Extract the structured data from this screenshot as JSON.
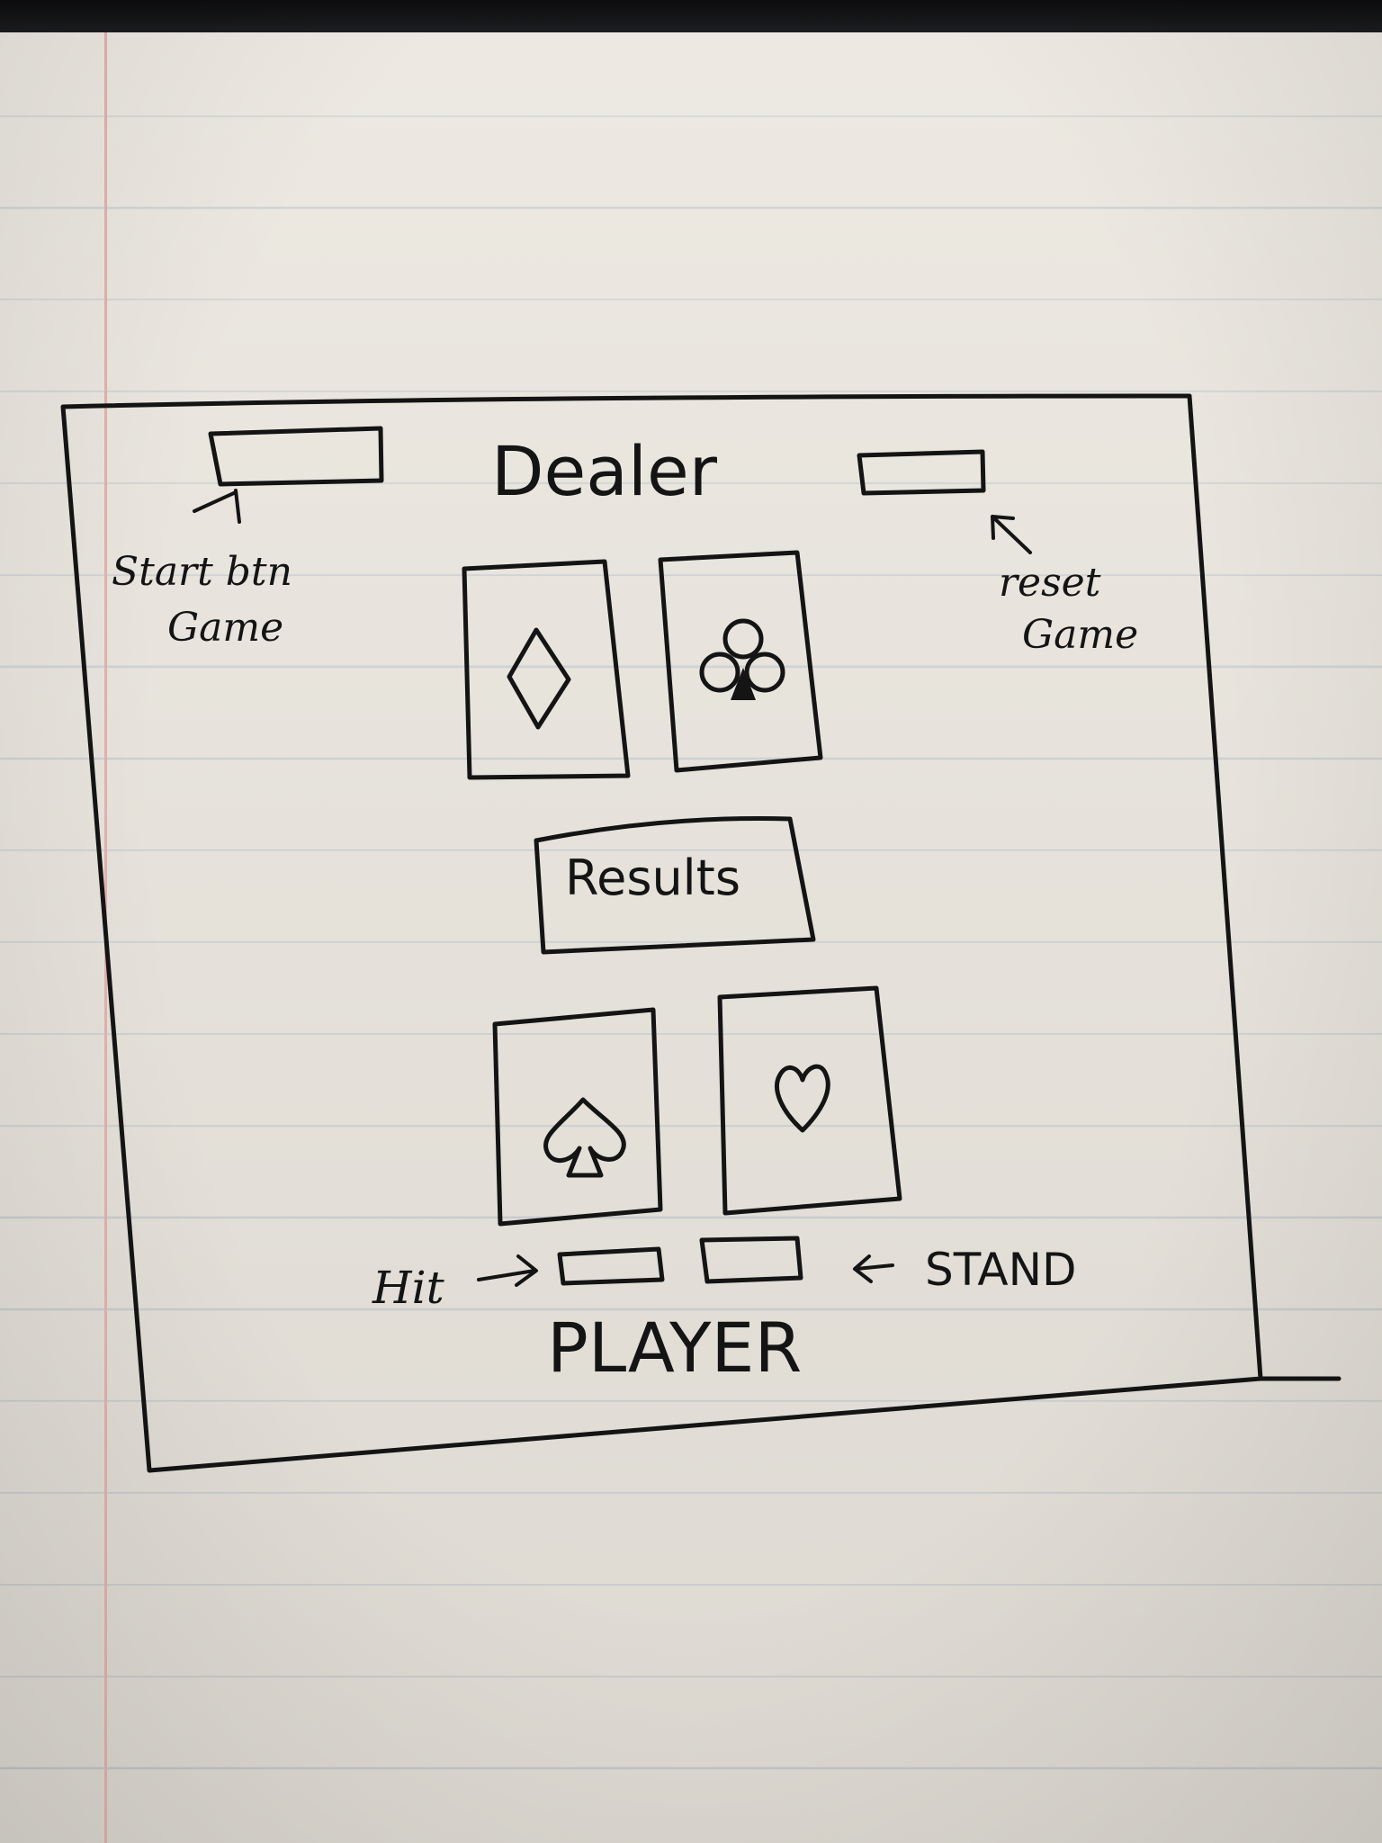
{
  "header": {
    "title": "Dealer",
    "start_button_note": [
      "Start btn",
      "Game"
    ],
    "reset_button_note": [
      "reset",
      "Game"
    ]
  },
  "dealer_hand": {
    "cards": [
      {
        "suit": "diamond",
        "icon": "diamond-icon"
      },
      {
        "suit": "club",
        "icon": "club-icon"
      }
    ]
  },
  "results": {
    "label": "Results"
  },
  "player_hand": {
    "cards": [
      {
        "suit": "spade",
        "icon": "spade-icon"
      },
      {
        "suit": "heart",
        "icon": "heart-icon"
      }
    ]
  },
  "controls": {
    "hit_label": "Hit",
    "stand_label": "STAND"
  },
  "footer": {
    "title": "PLAYER"
  }
}
